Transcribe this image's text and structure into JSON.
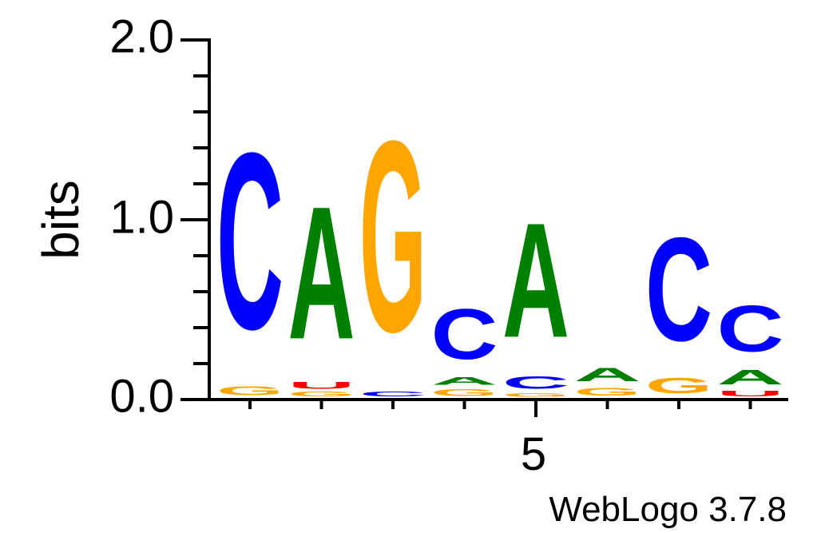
{
  "chart_data": {
    "type": "sequence-logo",
    "ylabel": "bits",
    "ylim": [
      0,
      2
    ],
    "y_ticks": [
      "0.0",
      "1.0",
      "2.0"
    ],
    "x_tick_label": "5",
    "x_tick_position": 5,
    "credit": "WebLogo 3.7.8",
    "colors": {
      "A": "#008000",
      "C": "#0000ff",
      "G": "#ffa500",
      "U": "#ff0000"
    },
    "positions": [
      {
        "pos": 1,
        "stack": [
          {
            "letter": "G",
            "bits": 0.08
          },
          {
            "letter": "C",
            "bits": 1.57
          }
        ]
      },
      {
        "pos": 2,
        "stack": [
          {
            "letter": "G",
            "bits": 0.04
          },
          {
            "letter": "U",
            "bits": 0.06
          },
          {
            "letter": "A",
            "bits": 1.18
          }
        ]
      },
      {
        "pos": 3,
        "stack": [
          {
            "letter": "C",
            "bits": 0.04
          },
          {
            "letter": "G",
            "bits": 1.7
          }
        ]
      },
      {
        "pos": 4,
        "stack": [
          {
            "letter": "G",
            "bits": 0.06
          },
          {
            "letter": "A",
            "bits": 0.07
          },
          {
            "letter": "C",
            "bits": 0.45
          }
        ]
      },
      {
        "pos": 5,
        "stack": [
          {
            "letter": "G",
            "bits": 0.03
          },
          {
            "letter": "C",
            "bits": 0.11
          },
          {
            "letter": "A",
            "bits": 1.02
          }
        ]
      },
      {
        "pos": 6,
        "stack": [
          {
            "letter": "G",
            "bits": 0.07
          },
          {
            "letter": "A",
            "bits": 0.12
          }
        ]
      },
      {
        "pos": 7,
        "stack": [
          {
            "letter": "G",
            "bits": 0.14
          },
          {
            "letter": "C",
            "bits": 0.92
          }
        ]
      },
      {
        "pos": 8,
        "stack": [
          {
            "letter": "U",
            "bits": 0.05
          },
          {
            "letter": "A",
            "bits": 0.13
          },
          {
            "letter": "C",
            "bits": 0.41
          }
        ]
      }
    ]
  }
}
